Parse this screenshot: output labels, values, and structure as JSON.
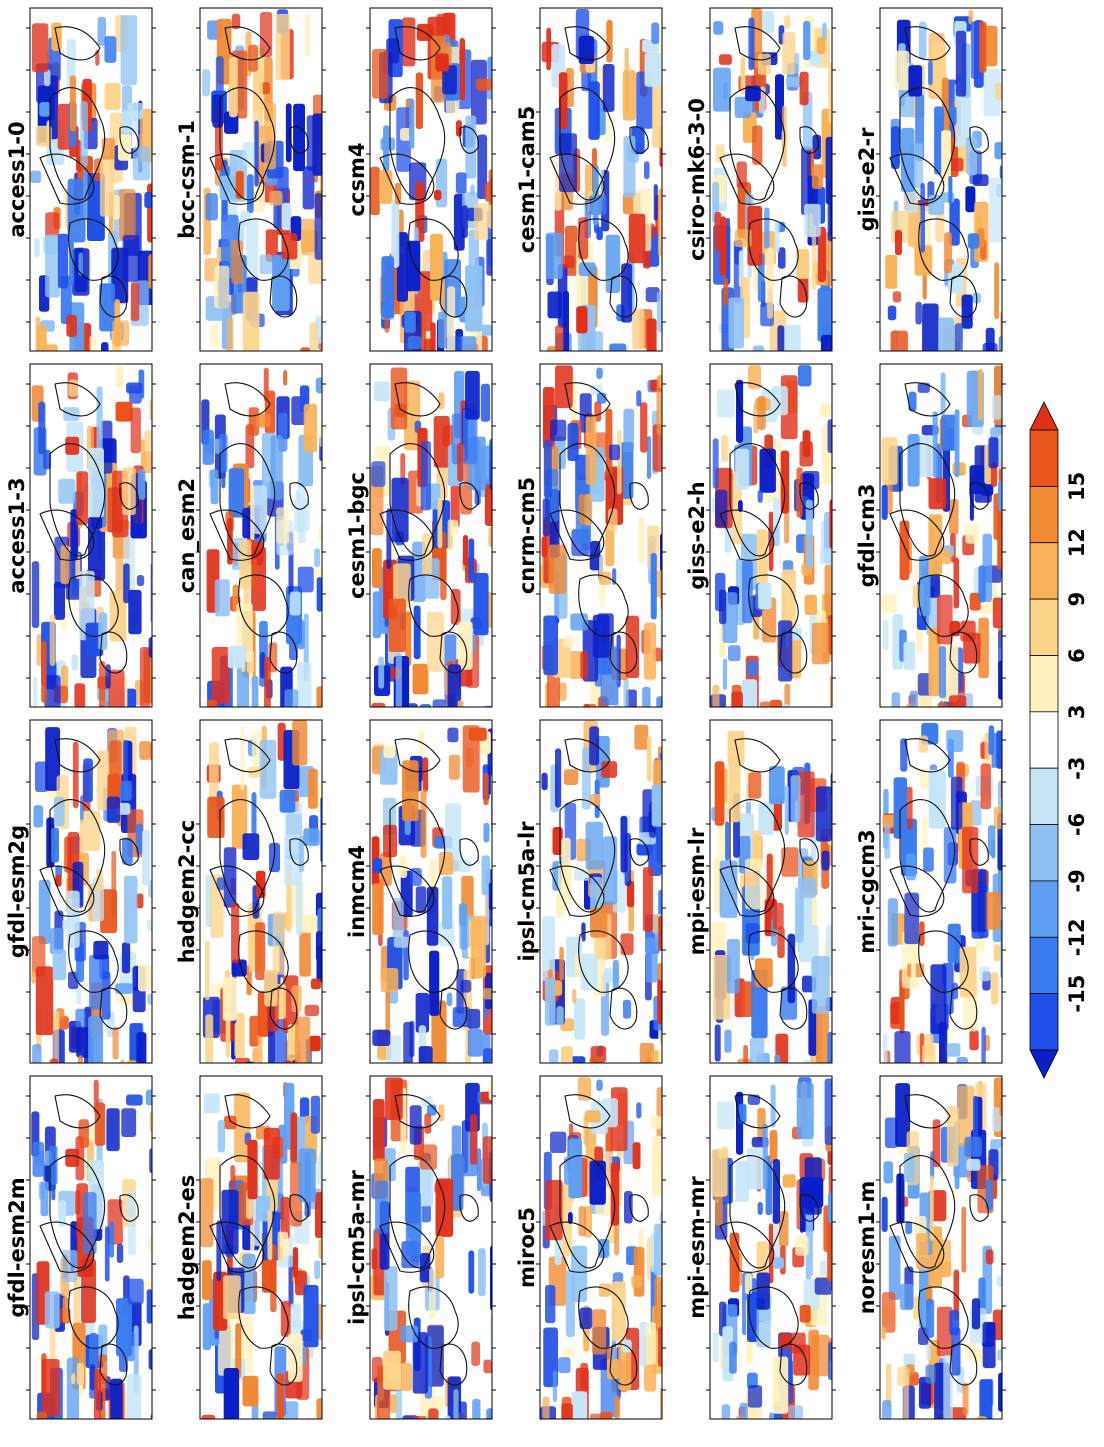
{
  "chart_data": {
    "type": "heatmap",
    "orientation": "rotated 90 degrees counter-clockwise",
    "projection": "global map with continent outlines",
    "colormap": "diverging blue-white-red",
    "panels": [
      {
        "model": "access1-0"
      },
      {
        "model": "bcc-csm-1"
      },
      {
        "model": "ccsm4"
      },
      {
        "model": "cesm1-cam5"
      },
      {
        "model": "csiro-mk6-3-0"
      },
      {
        "model": "giss-e2-r"
      },
      {
        "model": "access1-3"
      },
      {
        "model": "can_esm2"
      },
      {
        "model": "cesm1-bgc"
      },
      {
        "model": "cnrm-cm5"
      },
      {
        "model": "giss-e2-h"
      },
      {
        "model": "gfdl-cm3"
      },
      {
        "model": "gfdl-esm2g"
      },
      {
        "model": "hadgem2-cc"
      },
      {
        "model": "inmcm4"
      },
      {
        "model": "ipsl-cm5a-lr"
      },
      {
        "model": "mpi-esm-lr"
      },
      {
        "model": "mri-cgcm3"
      },
      {
        "model": "gfdl-esm2m"
      },
      {
        "model": "hadgem2-es"
      },
      {
        "model": "ipsl-cm5a-mr"
      },
      {
        "model": "miroc5"
      },
      {
        "model": "mpi-esm-mr"
      },
      {
        "model": "noresm1-m"
      }
    ],
    "colorbar": {
      "ticks": [
        "-15",
        "-12",
        "-9",
        "-6",
        "-3",
        "3",
        "6",
        "9",
        "12",
        "15"
      ],
      "colors": [
        "#1f4fe8",
        "#3a7bf0",
        "#5f9ff2",
        "#8fc2f3",
        "#c6e6f8",
        "#ffffff",
        "#fff2bf",
        "#fcd48a",
        "#f7b257",
        "#f08a33",
        "#e8541c"
      ],
      "extend": "both",
      "under_color": "#0a1fc8",
      "over_color": "#e0301a"
    }
  }
}
